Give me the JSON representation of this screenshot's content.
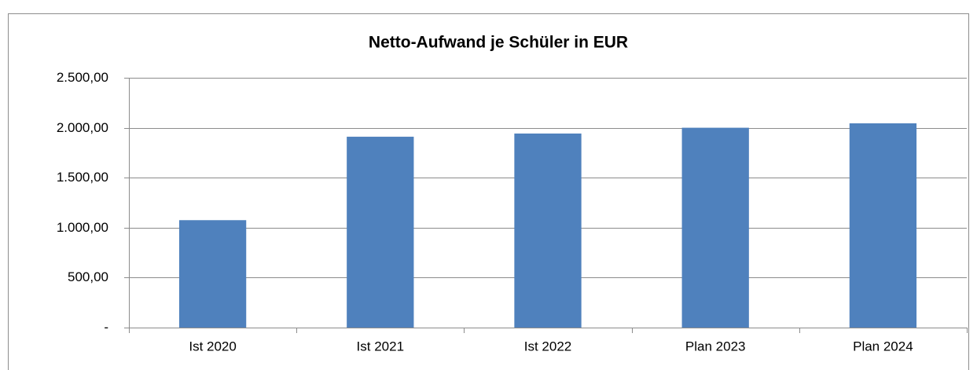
{
  "chart_data": {
    "type": "bar",
    "title": "Netto-Aufwand je Schüler in EUR",
    "categories": [
      "Ist 2020",
      "Ist 2021",
      "Ist 2022",
      "Plan 2023",
      "Plan 2024"
    ],
    "values": [
      1075,
      1910,
      1942,
      2000,
      2044
    ],
    "color": "#4f81bd",
    "ylim": [
      0,
      2500
    ],
    "yticks": [
      {
        "value": 0,
        "label": "-"
      },
      {
        "value": 500,
        "label": "500,00"
      },
      {
        "value": 1000,
        "label": "1.000,00"
      },
      {
        "value": 1500,
        "label": "1.500,00"
      },
      {
        "value": 2000,
        "label": "2.000,00"
      },
      {
        "value": 2500,
        "label": "2.500,00"
      }
    ],
    "grid": true
  }
}
